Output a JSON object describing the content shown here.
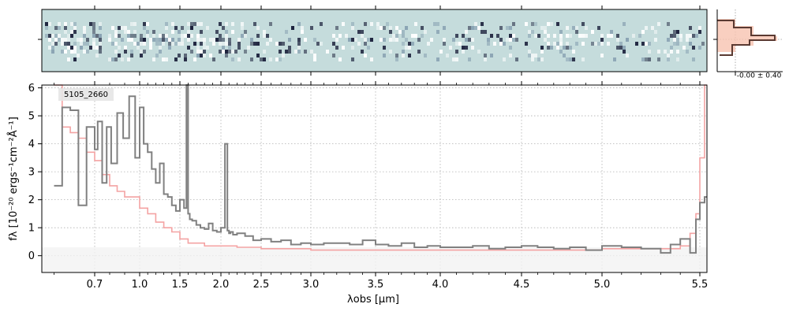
{
  "object_label": "5105_2660",
  "nmad_label": "-0.00 ± 0.40",
  "colors": {
    "spectrum": "#808080",
    "error": "#f4a3a3",
    "panel_bg": "#c5dcdc",
    "dark_pixel": "#1a1f3a",
    "hist_line": "#5a3a32",
    "hist_fill": "#f7c3b0"
  },
  "chart_data": {
    "type": "line",
    "xlabel": "λobs [μm]",
    "ylabel": "fλ [10⁻²⁰ ergs⁻¹cm⁻²Å⁻¹]",
    "x_scale": "compressed (tick positions as labeled)",
    "xlim": [
      0.57,
      5.53
    ],
    "ylim": [
      -0.6,
      6.1
    ],
    "x_ticks": [
      0.7,
      1.0,
      1.5,
      2.0,
      2.5,
      3.0,
      3.5,
      4.0,
      4.5,
      5.0,
      5.5
    ],
    "x_tick_labels": [
      "0.7",
      "1.0",
      "1.5",
      "2.0",
      "2.5",
      "3.0",
      "3.5",
      "4.0",
      "4.5",
      "5.0",
      "5.5"
    ],
    "y_ticks": [
      0,
      1,
      2,
      3,
      4,
      5,
      6
    ],
    "grid": true,
    "series": [
      {
        "key": "flux",
        "x": [
          0.6,
          0.62,
          0.64,
          0.66,
          0.68,
          0.7,
          0.72,
          0.75,
          0.78,
          0.81,
          0.85,
          0.89,
          0.93,
          0.97,
          1.0,
          1.05,
          1.1,
          1.15,
          1.2,
          1.25,
          1.3,
          1.35,
          1.4,
          1.45,
          1.5,
          1.55,
          1.58,
          1.6,
          1.62,
          1.65,
          1.7,
          1.75,
          1.8,
          1.85,
          1.9,
          1.95,
          2.0,
          2.05,
          2.08,
          2.1,
          2.12,
          2.15,
          2.2,
          2.3,
          2.4,
          2.5,
          2.6,
          2.7,
          2.8,
          2.9,
          3.0,
          3.1,
          3.2,
          3.3,
          3.4,
          3.5,
          3.6,
          3.7,
          3.8,
          3.9,
          4.0,
          4.1,
          4.2,
          4.3,
          4.4,
          4.5,
          4.6,
          4.7,
          4.8,
          4.9,
          5.0,
          5.1,
          5.2,
          5.3,
          5.35,
          5.4,
          5.45,
          5.48,
          5.5,
          5.52
        ],
        "y": [
          2.5,
          5.3,
          5.2,
          1.8,
          4.6,
          3.8,
          4.8,
          2.6,
          4.6,
          3.3,
          5.1,
          4.2,
          5.7,
          3.5,
          5.3,
          4.0,
          3.7,
          3.1,
          2.6,
          3.3,
          2.2,
          2.1,
          1.8,
          1.6,
          2.0,
          1.7,
          6.1,
          1.5,
          1.3,
          1.25,
          1.1,
          1.0,
          0.95,
          1.15,
          0.9,
          0.85,
          1.0,
          4.0,
          0.9,
          0.8,
          0.85,
          0.75,
          0.8,
          0.7,
          0.55,
          0.6,
          0.5,
          0.55,
          0.4,
          0.45,
          0.4,
          0.45,
          0.45,
          0.4,
          0.55,
          0.4,
          0.35,
          0.45,
          0.3,
          0.35,
          0.3,
          0.3,
          0.35,
          0.25,
          0.3,
          0.35,
          0.3,
          0.25,
          0.3,
          0.2,
          0.35,
          0.3,
          0.25,
          0.1,
          0.4,
          0.6,
          0.1,
          1.3,
          1.9,
          2.1
        ]
      },
      {
        "key": "error",
        "x": [
          0.6,
          0.62,
          0.64,
          0.66,
          0.68,
          0.7,
          0.75,
          0.8,
          0.85,
          0.9,
          1.0,
          1.1,
          1.2,
          1.3,
          1.4,
          1.5,
          1.6,
          1.8,
          2.0,
          2.2,
          2.5,
          3.0,
          3.5,
          4.0,
          4.5,
          5.0,
          5.2,
          5.35,
          5.4,
          5.45,
          5.48,
          5.5,
          5.52
        ],
        "y": [
          6.1,
          4.6,
          4.4,
          4.2,
          3.7,
          3.4,
          2.9,
          2.5,
          2.3,
          2.1,
          1.7,
          1.5,
          1.2,
          1.0,
          0.85,
          0.6,
          0.45,
          0.35,
          0.35,
          0.3,
          0.25,
          0.2,
          0.2,
          0.2,
          0.2,
          0.25,
          0.25,
          0.25,
          0.35,
          0.8,
          1.5,
          3.5,
          6.1
        ]
      }
    ]
  }
}
